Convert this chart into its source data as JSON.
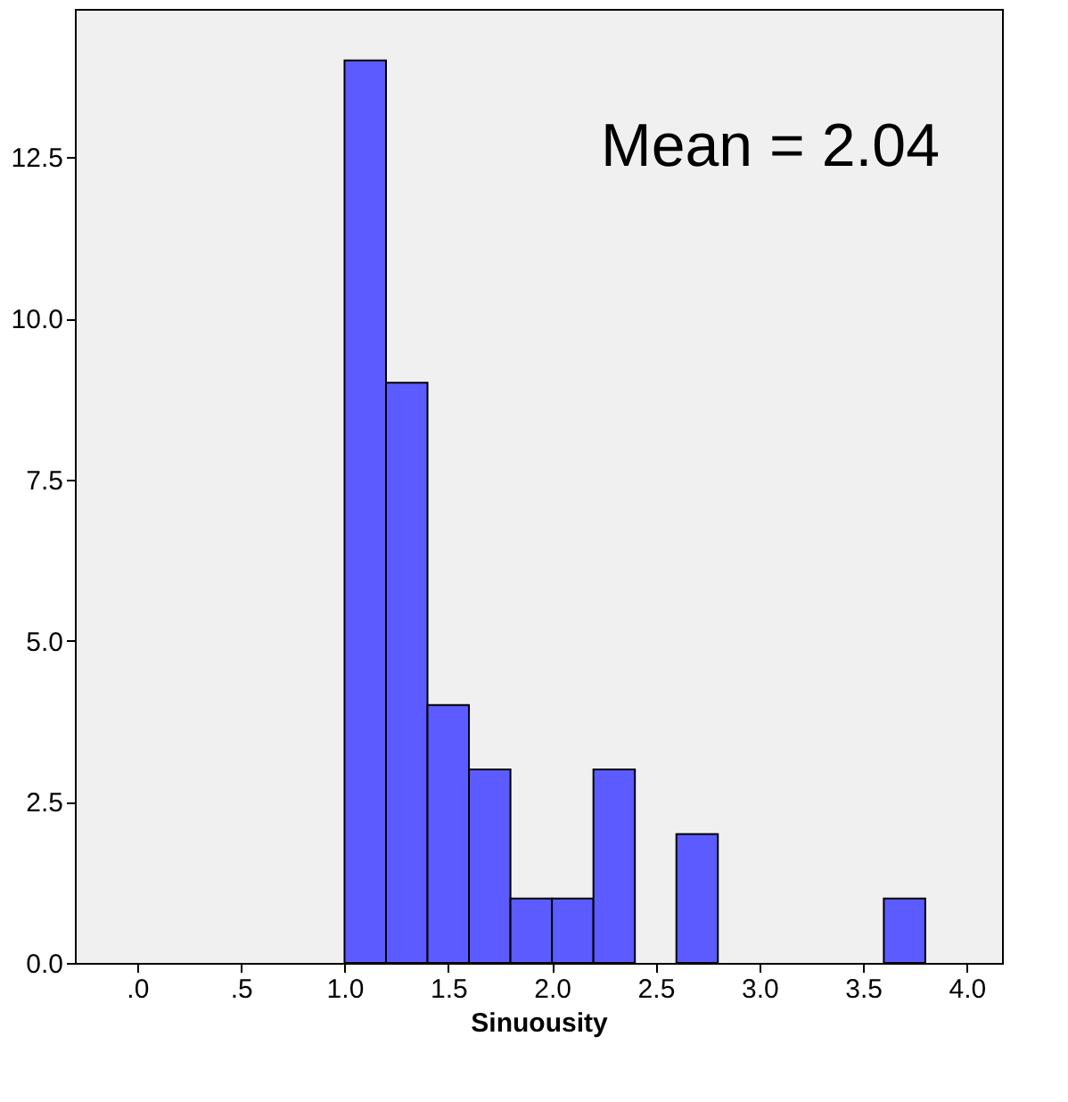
{
  "chart_data": {
    "type": "histogram",
    "xlabel": "Sinuousity",
    "bins": [
      1.0,
      1.2,
      1.4,
      1.6,
      1.8,
      2.0,
      2.2,
      2.4,
      2.6,
      2.8,
      3.0,
      3.2,
      3.4,
      3.6,
      3.8
    ],
    "values": [
      14,
      9,
      4,
      3,
      1,
      1,
      3,
      0,
      2,
      0,
      0,
      0,
      0,
      1
    ],
    "color": "#5b5bff",
    "xlim": [
      -0.3,
      4.17
    ],
    "ylim": [
      0,
      14.8
    ],
    "xticks": [
      {
        "value": 0,
        "label": ".0"
      },
      {
        "value": 0.5,
        "label": ".5"
      },
      {
        "value": 1.0,
        "label": "1.0"
      },
      {
        "value": 1.5,
        "label": "1.5"
      },
      {
        "value": 2.0,
        "label": "2.0"
      },
      {
        "value": 2.5,
        "label": "2.5"
      },
      {
        "value": 3.0,
        "label": "3.0"
      },
      {
        "value": 3.5,
        "label": "3.5"
      },
      {
        "value": 4.0,
        "label": "4.0"
      }
    ],
    "yticks": [
      {
        "value": 0,
        "label": "0.0"
      },
      {
        "value": 2.5,
        "label": "2.5"
      },
      {
        "value": 5,
        "label": "5.0"
      },
      {
        "value": 7.5,
        "label": "7.5"
      },
      {
        "value": 10,
        "label": "10.0"
      },
      {
        "value": 12.5,
        "label": "12.5"
      }
    ],
    "annotations": [
      "Mean = 2.04"
    ],
    "grid": false
  }
}
